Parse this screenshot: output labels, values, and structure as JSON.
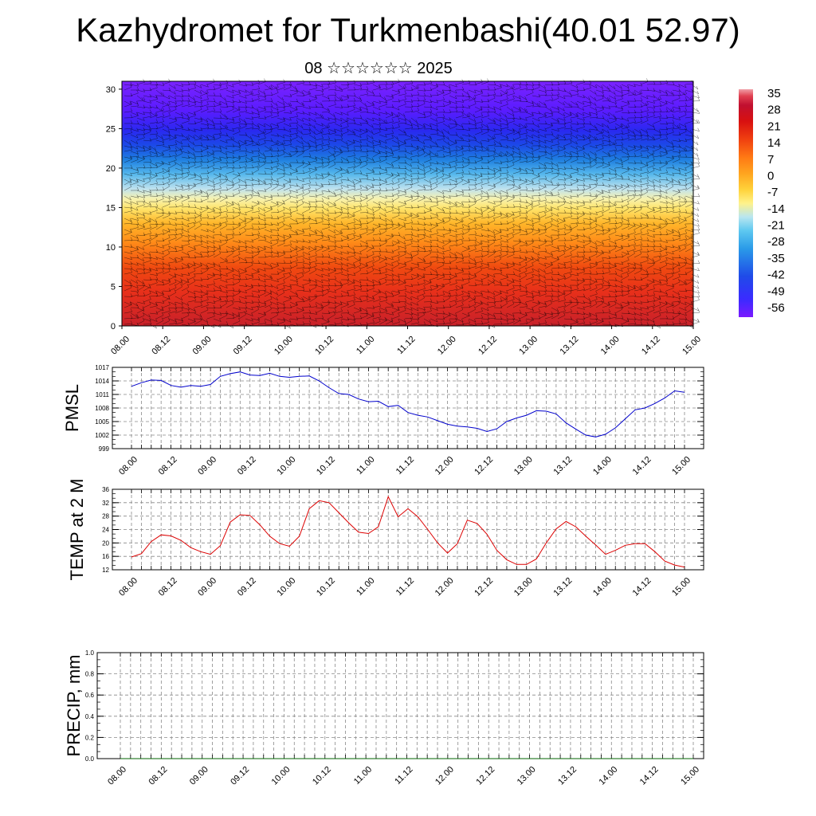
{
  "title": "Kazhydromet for Turkmenbashi(40.01 52.97)",
  "subtitle": "08 ☆☆☆☆☆☆ 2025",
  "x_ticks": [
    "08.00",
    "08.12",
    "09.00",
    "09.12",
    "10.00",
    "10.12",
    "11.00",
    "11.12",
    "12.00",
    "12.12",
    "13.00",
    "13.12",
    "14.00",
    "14.12",
    "15.00"
  ],
  "chart_data": [
    {
      "type": "heatmap",
      "title": "",
      "xlabel": "",
      "ylabel": "",
      "y_ticks": [
        0,
        5,
        10,
        15,
        20,
        25,
        30
      ],
      "ylim": [
        0,
        31
      ],
      "colorbar": {
        "ticks": [
          35,
          28,
          21,
          14,
          7,
          0,
          -7,
          -14,
          -21,
          -28,
          -35,
          -42,
          -49,
          -56
        ],
        "range": [
          -63,
          42
        ],
        "colors": [
          "#7a1aff",
          "#3a2bff",
          "#1f4be8",
          "#2a9ae8",
          "#5ec8f0",
          "#b9e6f0",
          "#fff28a",
          "#ffd23a",
          "#ffa51f",
          "#ff7a14",
          "#f04010",
          "#d81010",
          "#c01030",
          "#e04050",
          "#f0a0a8"
        ]
      },
      "description_layers": "temperature profile with wind barbs"
    },
    {
      "type": "line",
      "title": "",
      "ylabel": "PMSL",
      "y_ticks": [
        999,
        1002,
        1005,
        1008,
        1011,
        1014,
        1017
      ],
      "ylim": [
        999,
        1017
      ],
      "color": "#0000cc",
      "series": [
        {
          "name": "",
          "x_step_hours": 3,
          "values": [
            1012.8,
            1013.6,
            1014.2,
            1014.1,
            1013.0,
            1012.6,
            1013.0,
            1012.8,
            1013.2,
            1015.0,
            1015.6,
            1016.0,
            1015.3,
            1015.2,
            1015.7,
            1015.0,
            1014.8,
            1015.0,
            1015.1,
            1014.0,
            1012.5,
            1011.2,
            1011.0,
            1010.0,
            1009.4,
            1009.5,
            1008.3,
            1008.6,
            1007.0,
            1006.4,
            1006.0,
            1005.2,
            1004.4,
            1004.0,
            1003.8,
            1003.5,
            1002.8,
            1003.4,
            1005.0,
            1005.8,
            1006.4,
            1007.4,
            1007.3,
            1006.7,
            1004.7,
            1003.3,
            1002.0,
            1001.6,
            1002.2,
            1003.6,
            1005.6,
            1007.6,
            1008.0,
            1009.0,
            1010.2,
            1011.8,
            1011.5
          ]
        }
      ]
    },
    {
      "type": "line",
      "title": "",
      "ylabel": "TEMP at 2 M",
      "y_ticks": [
        12,
        16,
        20,
        24,
        28,
        32,
        36
      ],
      "ylim": [
        12,
        36
      ],
      "color": "#dd0000",
      "series": [
        {
          "name": "",
          "x_step_hours": 3,
          "values": [
            15.8,
            16.8,
            20.4,
            22.4,
            22.1,
            20.8,
            18.6,
            17.4,
            16.6,
            19.2,
            26.2,
            28.4,
            28.2,
            25.4,
            22.0,
            19.8,
            19.0,
            22.0,
            30.2,
            32.6,
            32.0,
            29.0,
            26.0,
            23.2,
            22.8,
            24.8,
            33.8,
            27.8,
            30.2,
            27.8,
            24.0,
            20.0,
            17.0,
            19.8,
            26.8,
            25.8,
            22.6,
            17.8,
            15.0,
            13.6,
            13.6,
            15.2,
            20.0,
            24.2,
            26.4,
            24.8,
            22.0,
            19.4,
            16.6,
            17.8,
            19.3,
            19.8,
            19.8,
            17.4,
            14.6,
            13.4,
            12.8
          ]
        }
      ]
    },
    {
      "type": "line",
      "title": "",
      "ylabel": "PRECIP, mm",
      "y_ticks": [
        "0.0",
        "0.2",
        "0.4",
        "0.6",
        "0.8",
        "1.0"
      ],
      "ylim": [
        0,
        1
      ],
      "color": "#006400",
      "series": [
        {
          "name": "",
          "x_step_hours": 3,
          "values": [
            0,
            0,
            0,
            0,
            0,
            0,
            0,
            0,
            0,
            0,
            0,
            0,
            0,
            0,
            0,
            0,
            0,
            0,
            0,
            0,
            0,
            0,
            0,
            0,
            0,
            0,
            0,
            0,
            0,
            0,
            0,
            0,
            0,
            0,
            0,
            0,
            0,
            0,
            0,
            0,
            0,
            0,
            0,
            0,
            0,
            0,
            0,
            0,
            0,
            0,
            0,
            0,
            0,
            0,
            0,
            0,
            0
          ]
        }
      ]
    }
  ]
}
